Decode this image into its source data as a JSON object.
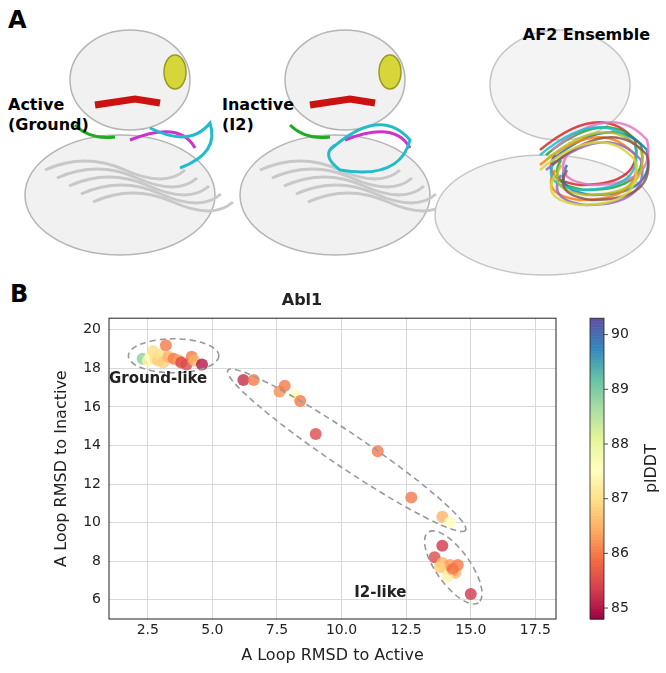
{
  "panel_a": {
    "label": "A",
    "structures": [
      {
        "lines": [
          "Active",
          "(Ground)"
        ]
      },
      {
        "lines": [
          "Inactive",
          "(I2)"
        ]
      },
      {
        "lines": [
          "AF2 Ensemble"
        ]
      }
    ]
  },
  "chart_data": {
    "type": "scatter",
    "panel_label": "B",
    "title": "Abl1",
    "x_label": "A Loop RMSD to Active",
    "y_label": "A Loop RMSD to Inactive",
    "xlim": [
      1,
      18.3
    ],
    "xticks": [
      2.5,
      {
        "value": 5,
        "label": "5.0"
      },
      7.5,
      {
        "value": 10,
        "label": "10.0"
      },
      12.5,
      {
        "value": 15,
        "label": "15.0"
      },
      17.5
    ],
    "ylim": [
      5,
      20.6
    ],
    "yticks": [
      6,
      8,
      10,
      12,
      14,
      16,
      18,
      20
    ],
    "grid": true,
    "x": [
      2.3,
      2.5,
      2.6,
      2.7,
      2.8,
      2.9,
      3.0,
      3.1,
      3.2,
      3.3,
      3.5,
      3.7,
      3.8,
      4.0,
      4.2,
      4.3,
      4.6,
      6.2,
      6.6,
      7.6,
      7.8,
      8.2,
      8.4,
      9.0,
      11.4,
      12.7,
      13.9,
      14.2,
      13.6,
      13.9,
      13.9,
      14.0,
      14.2,
      14.3,
      14.4,
      14.1,
      13.8,
      14.5,
      15.0,
      14.3
    ],
    "values": [
      18.5,
      18.4,
      18.6,
      18.9,
      18.5,
      18.4,
      18.7,
      18.3,
      19.2,
      18.6,
      18.5,
      18.4,
      18.3,
      18.2,
      18.6,
      18.4,
      18.2,
      17.4,
      17.4,
      16.8,
      17.1,
      16.6,
      16.3,
      14.6,
      13.7,
      11.3,
      10.3,
      10.0,
      8.2,
      8.8,
      7.9,
      7.6,
      7.8,
      7.5,
      7.4,
      7.2,
      7.7,
      7.8,
      6.3,
      7.6
    ],
    "plddt": [
      88.9,
      87.3,
      87.5,
      87.0,
      87.0,
      86.8,
      87.0,
      86.8,
      86.0,
      86.5,
      86.0,
      86.3,
      85.5,
      85.5,
      86.0,
      86.5,
      85.0,
      85.2,
      86.0,
      86.2,
      86.0,
      87.5,
      86.0,
      85.5,
      86.0,
      86.0,
      86.5,
      87.5,
      85.5,
      85.3,
      86.5,
      87.0,
      86.3,
      85.5,
      86.5,
      87.3,
      86.8,
      86.0,
      85.3,
      86.0
    ],
    "colorbar": {
      "label": "plDDT",
      "range": [
        84.8,
        90.3
      ],
      "ticks": [
        85,
        86,
        87,
        88,
        89,
        90
      ]
    },
    "annotations": [
      {
        "text": "Ground-like",
        "x": 2.9,
        "y": 17.45,
        "ellipse": [
          [
            1.75,
            18.65
          ],
          [
            5.25,
            18.65
          ]
        ]
      },
      {
        "ellipse": [
          [
            5.6,
            17.9
          ],
          [
            14.8,
            9.6
          ]
        ]
      },
      {
        "text": "I2-like",
        "x": 11.5,
        "y": 6.35,
        "ellipse": [
          [
            13.35,
            9.5
          ],
          [
            15.3,
            5.85
          ]
        ]
      }
    ]
  }
}
